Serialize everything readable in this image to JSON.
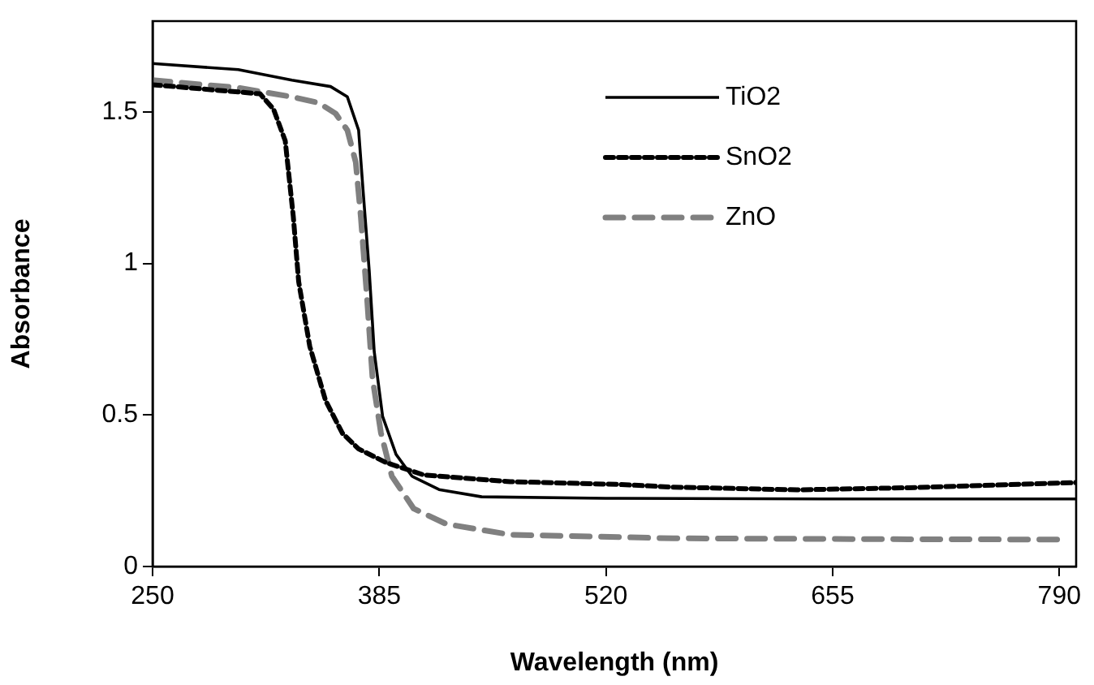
{
  "chart_data": {
    "type": "line",
    "xlabel": "Wavelength (nm)",
    "ylabel": "Absorbance",
    "xlim": [
      250,
      800
    ],
    "xticks": [
      250,
      385,
      520,
      655,
      790
    ],
    "ylim": [
      0,
      1.8
    ],
    "yticks": [
      0,
      0.5,
      1,
      1.5
    ],
    "grid": false,
    "legend": "top right",
    "marker": "none",
    "series": [
      {
        "name": "TiO2",
        "color": "#000000",
        "line_style": "solid",
        "x": [
          250,
          301,
          333,
          356,
          366,
          372.7,
          375.3,
          379,
          382,
          387,
          395,
          404.5,
          420.6,
          446,
          520,
          650,
          800
        ],
        "values": [
          1.66,
          1.64,
          1.605,
          1.584,
          1.55,
          1.44,
          1.245,
          0.977,
          0.709,
          0.495,
          0.37,
          0.298,
          0.254,
          0.23,
          0.225,
          0.223,
          0.223
        ]
      },
      {
        "name": "SnO2",
        "color": "#000000",
        "line_style": "dotted",
        "x": [
          250,
          314,
          322,
          329,
          333.8,
          337,
          343.6,
          353,
          363,
          372.7,
          389,
          411.6,
          463,
          527,
          560,
          633.7,
          700,
          800
        ],
        "values": [
          1.59,
          1.56,
          1.51,
          1.405,
          1.155,
          0.94,
          0.727,
          0.548,
          0.44,
          0.388,
          0.343,
          0.302,
          0.28,
          0.271,
          0.262,
          0.253,
          0.26,
          0.277
        ]
      },
      {
        "name": "ZnO",
        "color": "#808080",
        "line_style": "dashed",
        "x": [
          250,
          301,
          333,
          349,
          359,
          366,
          371,
          374,
          377.7,
          381,
          386,
          392.5,
          405.5,
          425,
          463,
          560,
          700,
          790
        ],
        "values": [
          1.605,
          1.58,
          1.55,
          1.53,
          1.495,
          1.44,
          1.334,
          1.155,
          0.887,
          0.62,
          0.441,
          0.298,
          0.191,
          0.14,
          0.105,
          0.093,
          0.09,
          0.089
        ]
      }
    ]
  }
}
